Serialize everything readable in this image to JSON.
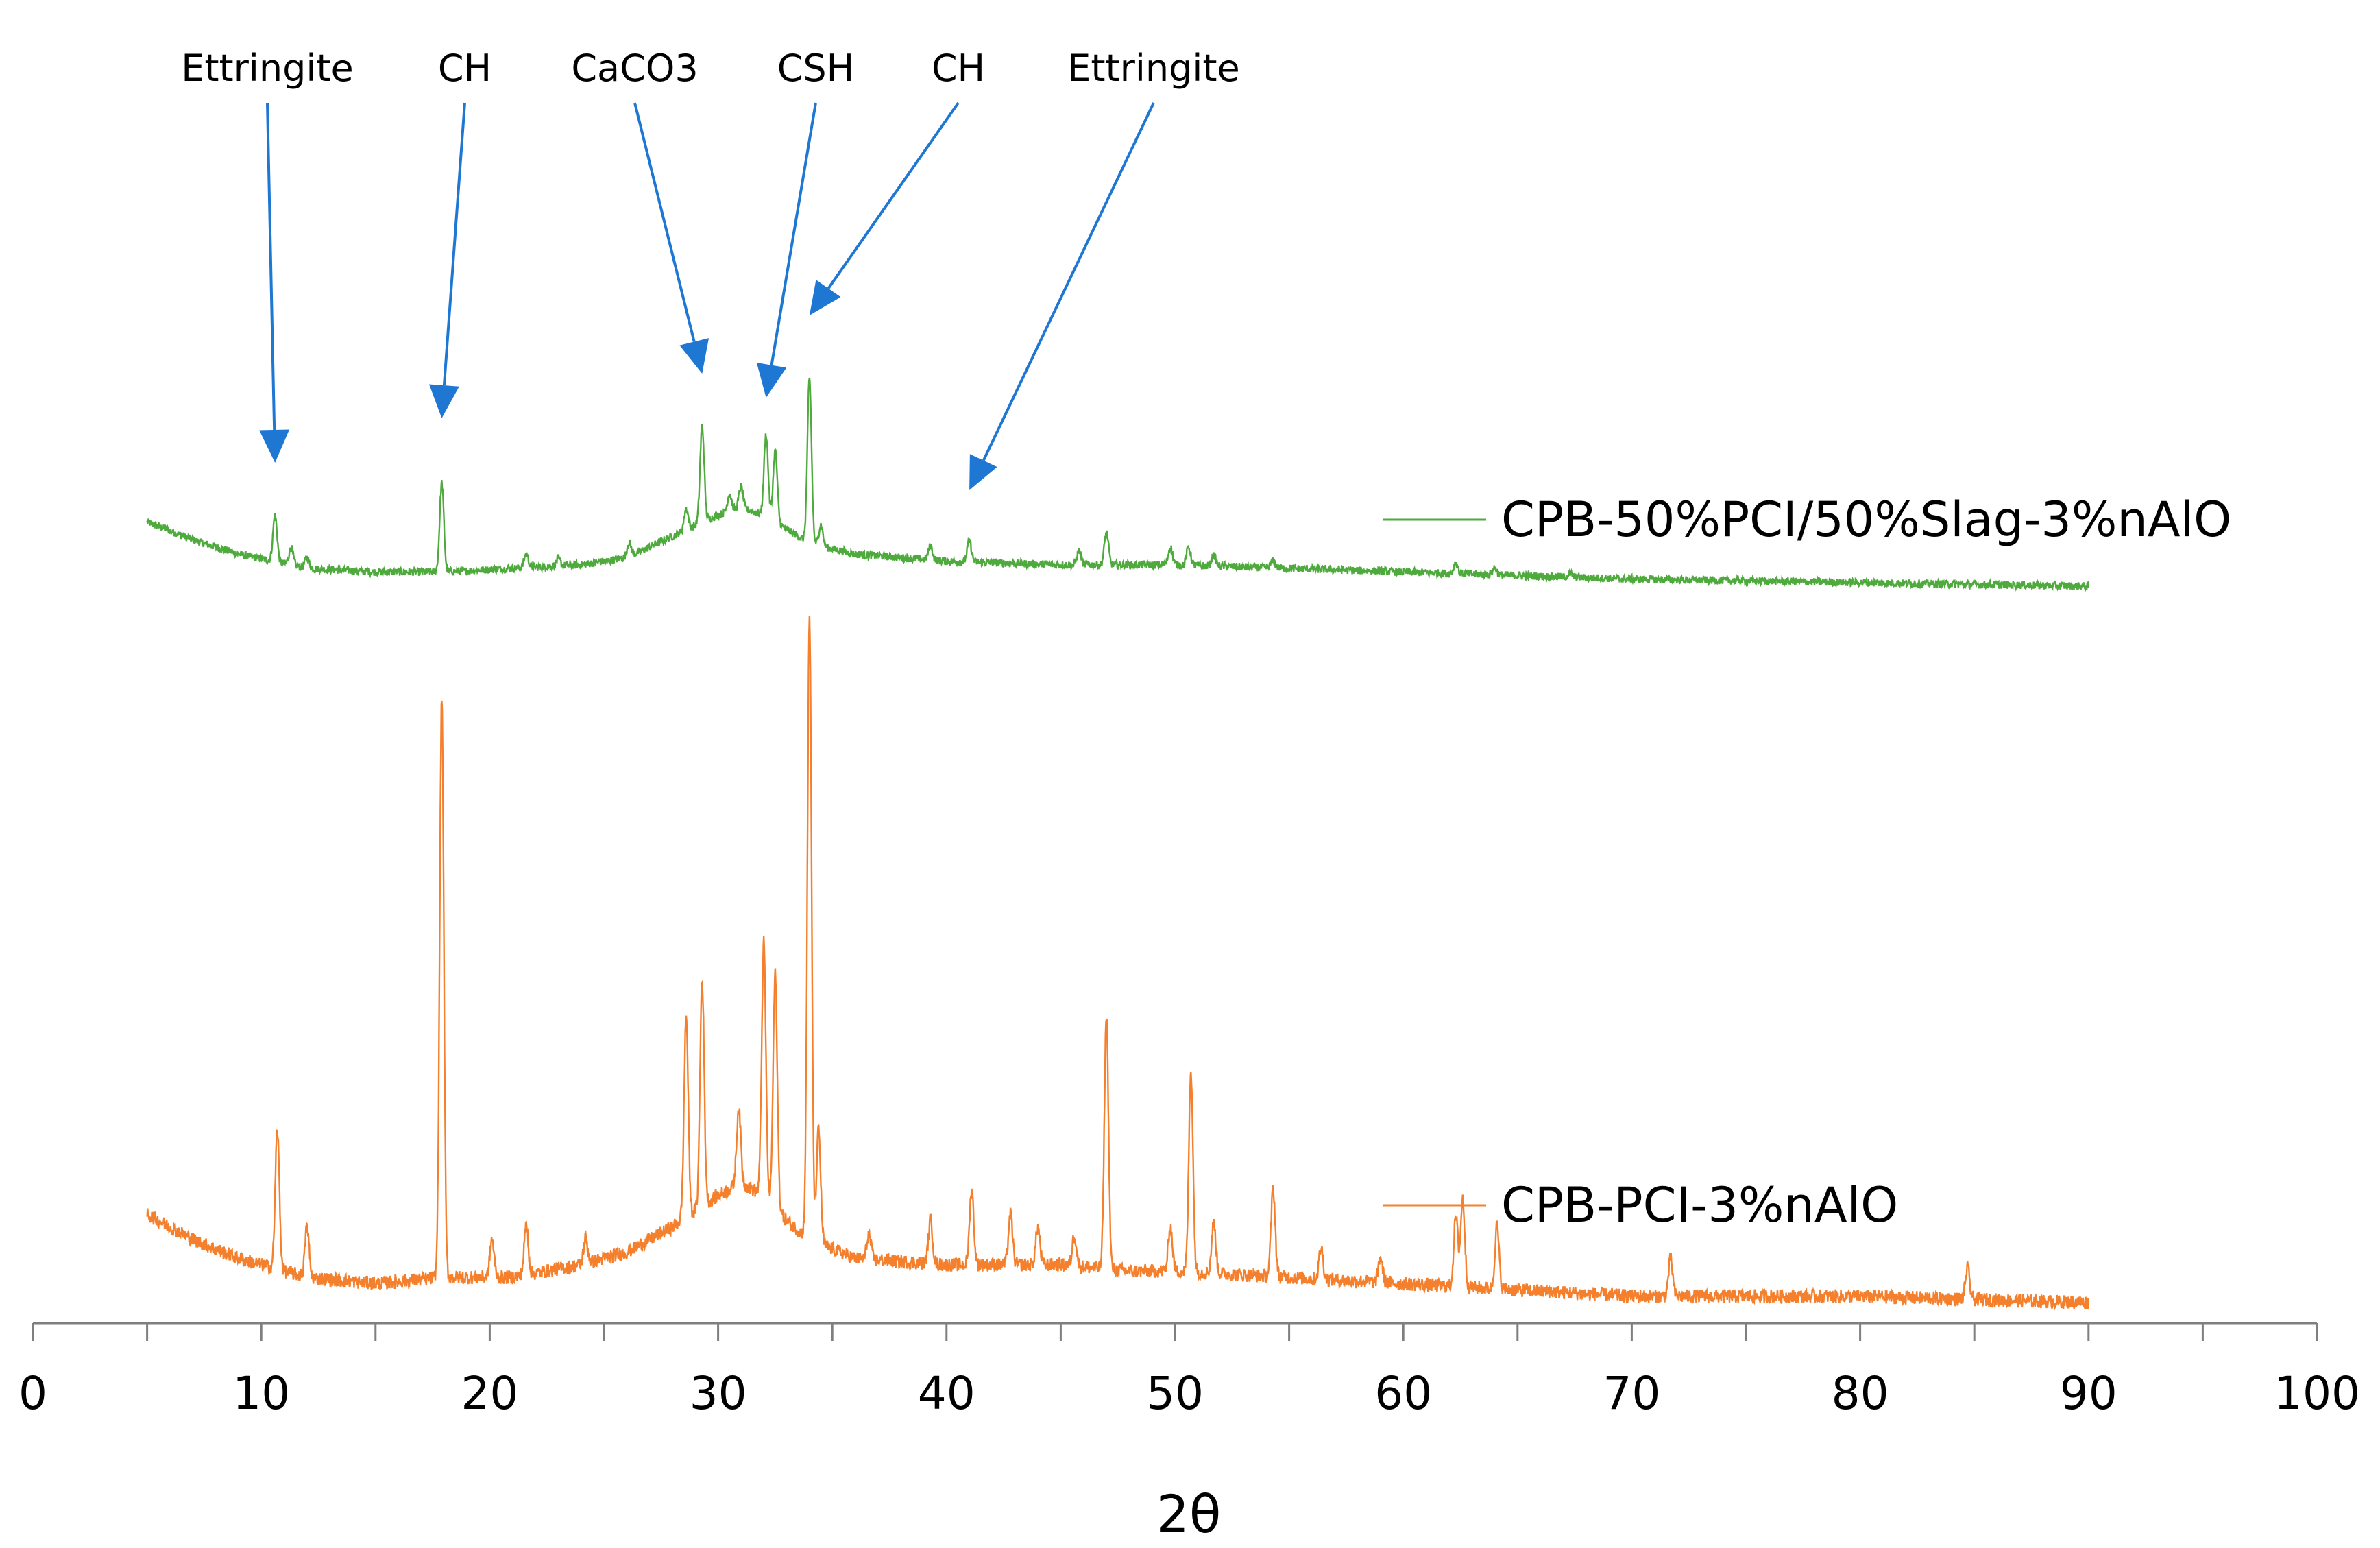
{
  "chart_data": {
    "type": "line",
    "title": "",
    "xlabel": "2θ",
    "ylabel": "",
    "xlim": [
      0,
      100
    ],
    "xticks": [
      "0",
      "10",
      "20",
      "30",
      "40",
      "50",
      "60",
      "70",
      "80",
      "90",
      "100"
    ],
    "grid": false,
    "y_axis_shown": false,
    "series": [
      {
        "name": "CPB-50%PCI/50%Slag-3%nAlO",
        "color": "#4eaa3c",
        "x_range": [
          5,
          90
        ],
        "baseline": [
          [
            5,
            18
          ],
          [
            7,
            13
          ],
          [
            9,
            9
          ],
          [
            12,
            5
          ],
          [
            15,
            4
          ],
          [
            18,
            4
          ],
          [
            21,
            5
          ],
          [
            24,
            6
          ],
          [
            26,
            8
          ],
          [
            28,
            14
          ],
          [
            30,
            20
          ],
          [
            31,
            22
          ],
          [
            32,
            20
          ],
          [
            33,
            16
          ],
          [
            34,
            12
          ],
          [
            36,
            9
          ],
          [
            40,
            7
          ],
          [
            45,
            6
          ],
          [
            50,
            6
          ],
          [
            55,
            5
          ],
          [
            60,
            4
          ],
          [
            65,
            3
          ],
          [
            70,
            2
          ],
          [
            80,
            1
          ],
          [
            90,
            0
          ]
        ],
        "peaks": [
          {
            "x": 10.6,
            "h": 13
          },
          {
            "x": 11.3,
            "h": 5
          },
          {
            "x": 12.0,
            "h": 3
          },
          {
            "x": 17.9,
            "h": 25
          },
          {
            "x": 21.6,
            "h": 4
          },
          {
            "x": 23.0,
            "h": 2
          },
          {
            "x": 26.1,
            "h": 4
          },
          {
            "x": 28.6,
            "h": 6
          },
          {
            "x": 29.3,
            "h": 27
          },
          {
            "x": 30.5,
            "h": 5
          },
          {
            "x": 31.0,
            "h": 6
          },
          {
            "x": 32.1,
            "h": 23
          },
          {
            "x": 32.5,
            "h": 20
          },
          {
            "x": 34.0,
            "h": 46
          },
          {
            "x": 34.5,
            "h": 6
          },
          {
            "x": 39.3,
            "h": 4
          },
          {
            "x": 41.0,
            "h": 6
          },
          {
            "x": 45.8,
            "h": 4
          },
          {
            "x": 47.0,
            "h": 9
          },
          {
            "x": 49.8,
            "h": 5
          },
          {
            "x": 50.6,
            "h": 5
          },
          {
            "x": 51.7,
            "h": 3
          },
          {
            "x": 54.3,
            "h": 2
          },
          {
            "x": 62.3,
            "h": 3
          },
          {
            "x": 64.0,
            "h": 2
          },
          {
            "x": 67.3,
            "h": 1
          }
        ]
      },
      {
        "name": "CPB-PCI-3%nAlO",
        "color": "#f4802d",
        "x_range": [
          5,
          90
        ],
        "baseline": [
          [
            5,
            14
          ],
          [
            7,
            10
          ],
          [
            9,
            7
          ],
          [
            12,
            4
          ],
          [
            15,
            3
          ],
          [
            18,
            4
          ],
          [
            21,
            4
          ],
          [
            24,
            6
          ],
          [
            26,
            8
          ],
          [
            28,
            12
          ],
          [
            30,
            17
          ],
          [
            31,
            19
          ],
          [
            32,
            17
          ],
          [
            33,
            13
          ],
          [
            34,
            10
          ],
          [
            36,
            7
          ],
          [
            40,
            6
          ],
          [
            45,
            6
          ],
          [
            48,
            5
          ],
          [
            50,
            5
          ],
          [
            55,
            4
          ],
          [
            60,
            3
          ],
          [
            65,
            2
          ],
          [
            70,
            1
          ],
          [
            80,
            1
          ],
          [
            90,
            0
          ]
        ],
        "peaks": [
          {
            "x": 10.7,
            "h": 22
          },
          {
            "x": 12.0,
            "h": 8
          },
          {
            "x": 17.9,
            "h": 92
          },
          {
            "x": 20.1,
            "h": 6
          },
          {
            "x": 21.6,
            "h": 8
          },
          {
            "x": 24.2,
            "h": 4
          },
          {
            "x": 28.6,
            "h": 32
          },
          {
            "x": 29.3,
            "h": 36
          },
          {
            "x": 30.9,
            "h": 12
          },
          {
            "x": 32.0,
            "h": 40
          },
          {
            "x": 32.5,
            "h": 37
          },
          {
            "x": 34.0,
            "h": 99
          },
          {
            "x": 34.4,
            "h": 18
          },
          {
            "x": 36.6,
            "h": 4
          },
          {
            "x": 39.3,
            "h": 7
          },
          {
            "x": 41.1,
            "h": 12
          },
          {
            "x": 42.8,
            "h": 8
          },
          {
            "x": 44.0,
            "h": 6
          },
          {
            "x": 45.6,
            "h": 5
          },
          {
            "x": 47.0,
            "h": 40
          },
          {
            "x": 49.8,
            "h": 7
          },
          {
            "x": 50.7,
            "h": 32
          },
          {
            "x": 51.7,
            "h": 8
          },
          {
            "x": 54.3,
            "h": 14
          },
          {
            "x": 56.4,
            "h": 5
          },
          {
            "x": 59.0,
            "h": 4
          },
          {
            "x": 62.3,
            "h": 11
          },
          {
            "x": 62.6,
            "h": 14
          },
          {
            "x": 64.1,
            "h": 10
          },
          {
            "x": 71.7,
            "h": 6
          },
          {
            "x": 84.7,
            "h": 5
          }
        ]
      }
    ],
    "annotations": [
      {
        "label": "Ettringite",
        "x": 10.6,
        "series": "CPB-50%PCI/50%Slag-3%nAlO"
      },
      {
        "label": "CH",
        "x": 17.9,
        "series": "CPB-50%PCI/50%Slag-3%nAlO"
      },
      {
        "label": "CaCO3",
        "x": 29.3,
        "series": "CPB-50%PCI/50%Slag-3%nAlO"
      },
      {
        "label": "CSH",
        "x": 32.1,
        "series": "CPB-50%PCI/50%Slag-3%nAlO"
      },
      {
        "label": "CH",
        "x": 34.0,
        "series": "CPB-50%PCI/50%Slag-3%nAlO"
      },
      {
        "label": "Ettringite",
        "x": 41.0,
        "series": "CPB-50%PCI/50%Slag-3%nAlO"
      }
    ],
    "annotation_color": "#1f77d4"
  }
}
